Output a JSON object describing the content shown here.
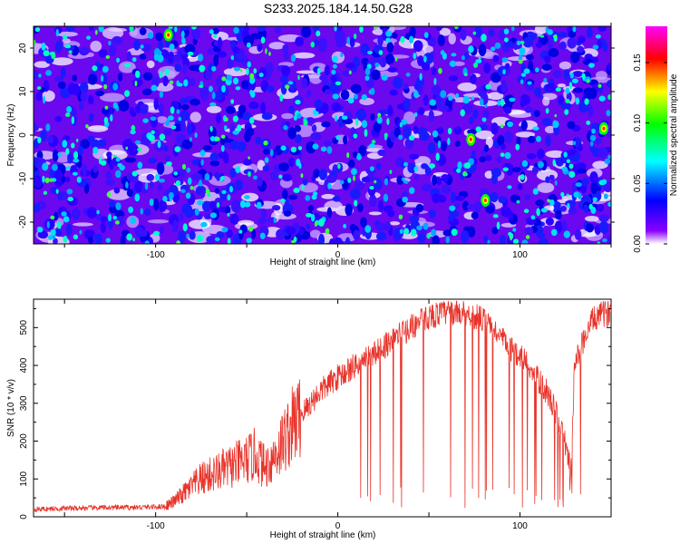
{
  "title": "S233.2025.184.14.50.G28",
  "colors": {
    "snr_line": "#e8332a",
    "axis": "#000000"
  },
  "chart_data": [
    {
      "type": "heatmap",
      "xlabel": "Height of straight line (km)",
      "ylabel": "Frequency (Hz)",
      "xlim": [
        -167,
        150
      ],
      "ylim": [
        -25,
        25
      ],
      "xticks": [
        "-100",
        "0",
        "100"
      ],
      "yticks": [
        "-20",
        "-10",
        "0",
        "10",
        "20"
      ],
      "colorbar": {
        "label": "Normalized spectral amplitude",
        "range": [
          0,
          0.18
        ],
        "ticks": [
          "0.00",
          "0.05",
          "0.10",
          "0.15"
        ],
        "colormap": [
          "#ffffff",
          "#8a00ff",
          "#0000ff",
          "#00ffff",
          "#00ff00",
          "#ffff00",
          "#ff0000",
          "#ff00ff"
        ]
      },
      "highlights": [
        {
          "x": 73,
          "y": -1,
          "value": 0.13
        },
        {
          "x": 81,
          "y": -15,
          "value": 0.15
        },
        {
          "x": 146,
          "y": 1.5,
          "value": 0.16
        },
        {
          "x": -93,
          "y": 23,
          "value": 0.12
        }
      ]
    },
    {
      "type": "line",
      "xlabel": "Height of straight line (km)",
      "ylabel": "SNR (10 * v/v)",
      "xlim": [
        -167,
        150
      ],
      "ylim": [
        0,
        575
      ],
      "xticks": [
        "-100",
        "0",
        "100"
      ],
      "yticks": [
        "0",
        "100",
        "200",
        "300",
        "400",
        "500"
      ],
      "series": [
        {
          "x": [
            -167,
            -150,
            -130,
            -110,
            -100,
            -95,
            -90,
            -85,
            -80,
            -75,
            -70,
            -65,
            -60,
            -55,
            -50,
            -45,
            -40,
            -35,
            -30,
            -25,
            -20,
            -15,
            -10,
            -5,
            0,
            10,
            20,
            30,
            40,
            50,
            60,
            70,
            80,
            85,
            90,
            95,
            100,
            105,
            110,
            115,
            120,
            125,
            128,
            130,
            135,
            140,
            145,
            150
          ],
          "y": [
            20,
            22,
            24,
            25,
            26,
            28,
            40,
            60,
            80,
            100,
            110,
            120,
            130,
            140,
            150,
            165,
            130,
            160,
            200,
            240,
            270,
            300,
            330,
            350,
            370,
            400,
            430,
            470,
            500,
            530,
            540,
            540,
            520,
            500,
            470,
            440,
            430,
            400,
            360,
            330,
            270,
            190,
            120,
            400,
            470,
            520,
            535,
            540
          ]
        }
      ]
    }
  ]
}
